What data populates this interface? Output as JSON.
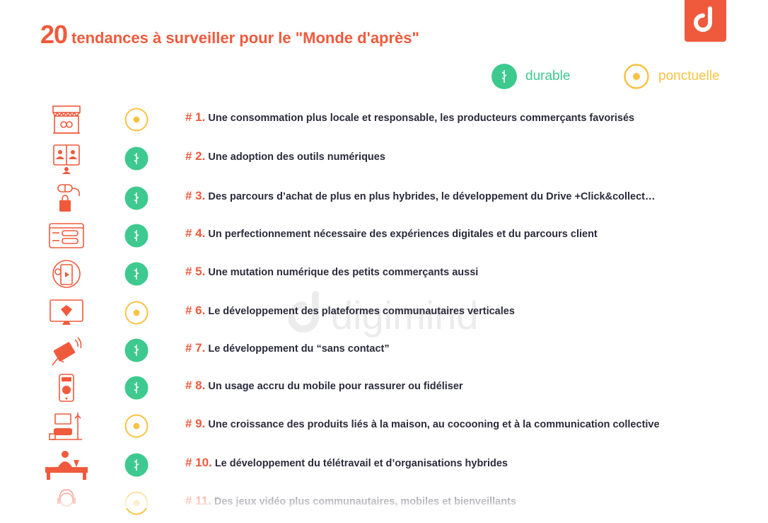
{
  "header": {
    "title_number": "20",
    "title_text": "tendances à surveiller pour le \"Monde d'après\""
  },
  "legend": {
    "durable": {
      "label": "durable",
      "color": "#3ec98e",
      "icon": "durable-icon"
    },
    "ponctuelle": {
      "label": "ponctuelle",
      "color": "#f7c343",
      "icon": "ponctuelle-icon"
    }
  },
  "brand": {
    "accent": "#f05a3c",
    "watermark": "digimind"
  },
  "trends": [
    {
      "num": "# 1.",
      "text": "Une consommation plus locale et responsable, les producteurs commerçants favorisés",
      "status": "ponctuelle",
      "icon": "market-stall-icon"
    },
    {
      "num": "# 2.",
      "text": "Une adoption des outils numériques",
      "status": "durable",
      "icon": "video-call-monitor-icon"
    },
    {
      "num": "# 3.",
      "text": "Des parcours d’achat de plus en plus hybrides, le développement du Drive +Click&collect…",
      "status": "durable",
      "icon": "mouse-shopping-bag-icon"
    },
    {
      "num": "# 4.",
      "text": "Un perfectionnement nécessaire des expériences digitales et du parcours client",
      "status": "durable",
      "icon": "web-layout-icon"
    },
    {
      "num": "# 5.",
      "text": "Une mutation numérique des petits commerçants aussi",
      "status": "durable",
      "icon": "mobile-commerce-icon"
    },
    {
      "num": "# 6.",
      "text": "Le développement des plateformes communautaires verticales",
      "status": "ponctuelle",
      "icon": "platform-monitor-icon"
    },
    {
      "num": "# 7.",
      "text": "Le développement du “sans contact”",
      "status": "durable",
      "icon": "contactless-card-icon"
    },
    {
      "num": "# 8.",
      "text": "Un usage accru du mobile pour rassurer ou fidéliser",
      "status": "durable",
      "icon": "mobile-store-icon"
    },
    {
      "num": "# 9.",
      "text": "Une croissance des produits liés à la maison, au  cocooning et à la communication collective",
      "status": "ponctuelle",
      "icon": "home-living-icon"
    },
    {
      "num": "#  10.",
      "text": "Le développement du télétravail et d’organisations hybrides",
      "status": "durable",
      "icon": "remote-work-desk-icon"
    },
    {
      "num": "# 11.",
      "text": "Des jeux vidéo plus communautaires, mobiles et bienveillants",
      "status": "ponctuelle",
      "icon": "gamer-headset-icon"
    }
  ]
}
